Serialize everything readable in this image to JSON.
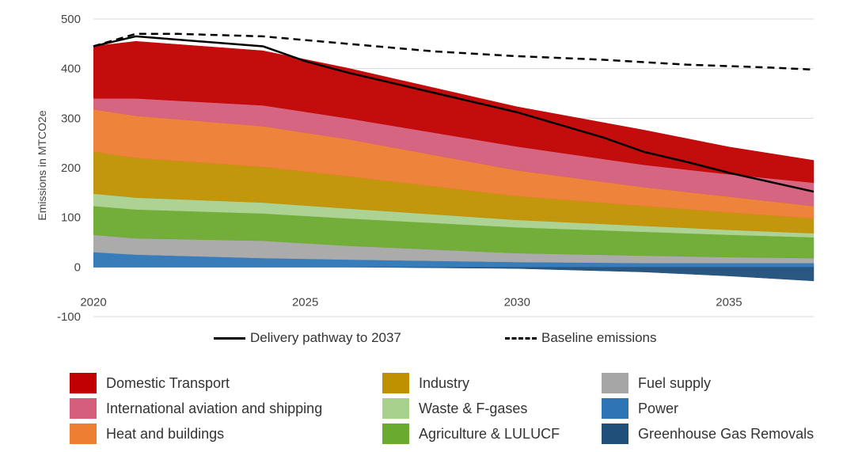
{
  "chart_data": {
    "type": "area",
    "ylabel": "Emissions in MTCO2e",
    "ylim": [
      -100,
      500
    ],
    "yticks": [
      -100,
      0,
      100,
      200,
      300,
      400,
      500
    ],
    "xlim": [
      2020,
      2037
    ],
    "xticks": [
      2020,
      2025,
      2030,
      2035
    ],
    "x": [
      2020,
      2021,
      2024,
      2026,
      2030,
      2033,
      2035,
      2037
    ],
    "series": [
      {
        "name": "Greenhouse Gas Removals",
        "color": "#1f4e79",
        "values": [
          0,
          0,
          0,
          0,
          -3,
          -10,
          -18,
          -28
        ]
      },
      {
        "name": "Power",
        "color": "#2e75b6",
        "values": [
          30,
          25,
          18,
          15,
          10,
          8,
          8,
          8
        ]
      },
      {
        "name": "Fuel supply",
        "color": "#a6a6a6",
        "values": [
          35,
          33,
          35,
          28,
          18,
          15,
          12,
          10
        ]
      },
      {
        "name": "Agriculture & LULUCF",
        "color": "#6aaa2e",
        "values": [
          58,
          58,
          55,
          55,
          52,
          48,
          45,
          42
        ]
      },
      {
        "name": "Waste & F-gases",
        "color": "#a9d18e",
        "values": [
          25,
          24,
          22,
          20,
          15,
          12,
          10,
          8
        ]
      },
      {
        "name": "Industry",
        "color": "#bf9000",
        "values": [
          85,
          80,
          72,
          65,
          48,
          40,
          35,
          30
        ]
      },
      {
        "name": "Heat and buildings",
        "color": "#ed7d31",
        "values": [
          85,
          85,
          82,
          75,
          52,
          38,
          32,
          25
        ]
      },
      {
        "name": "International aviation and shipping",
        "color": "#d35d7a",
        "values": [
          22,
          35,
          42,
          42,
          48,
          45,
          45,
          47
        ]
      },
      {
        "name": "Domestic Transport",
        "color": "#c00000",
        "values": [
          105,
          115,
          110,
          101,
          80,
          70,
          55,
          45
        ]
      }
    ],
    "lines": [
      {
        "name": "Delivery pathway to 2037",
        "style": "solid",
        "color": "#000000",
        "x": [
          2020,
          2021,
          2024,
          2025,
          2026,
          2028,
          2030,
          2032,
          2033,
          2034,
          2035,
          2037
        ],
        "values": [
          445,
          465,
          445,
          415,
          392,
          352,
          312,
          262,
          232,
          212,
          190,
          152
        ]
      },
      {
        "name": "Baseline emissions",
        "style": "dashed",
        "color": "#000000",
        "x": [
          2020,
          2021,
          2022,
          2024,
          2026,
          2028,
          2030,
          2032,
          2034,
          2036,
          2037
        ],
        "values": [
          445,
          470,
          470,
          465,
          450,
          435,
          425,
          418,
          408,
          402,
          398
        ]
      }
    ]
  }
}
